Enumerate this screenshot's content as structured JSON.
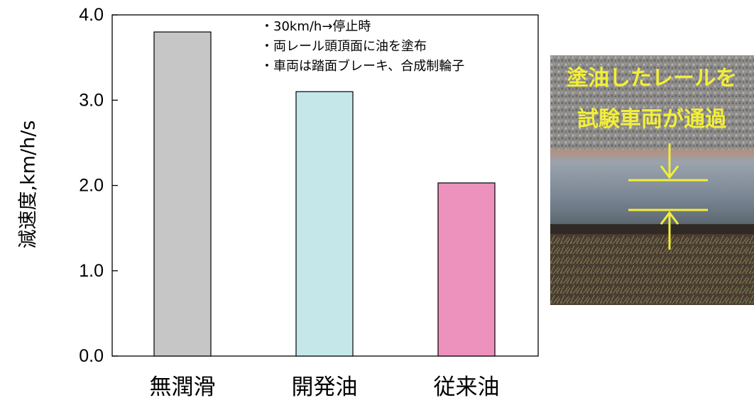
{
  "chart_data": {
    "type": "bar",
    "categories": [
      "無潤滑",
      "開発油",
      "従来油"
    ],
    "values": [
      3.8,
      3.1,
      2.03
    ],
    "colors": [
      "#c6c6c6",
      "#c5e7ea",
      "#ec92bd"
    ],
    "ylabel": "減速度,km/h/s",
    "xlabel": "",
    "ylim": [
      0,
      4
    ],
    "yticks": [
      "0.0",
      "1.0",
      "2.0",
      "3.0",
      "4.0"
    ],
    "grid": false,
    "annotations": [
      "・30km/h→停止時",
      "・両レール頭頂面に油を塗布",
      "・車両は踏面ブレーキ、合成制輪子"
    ]
  },
  "photo": {
    "caption_lines": [
      "塗油したレールを",
      "試験車両が通過"
    ],
    "marker_color": "#f3ee3a"
  }
}
